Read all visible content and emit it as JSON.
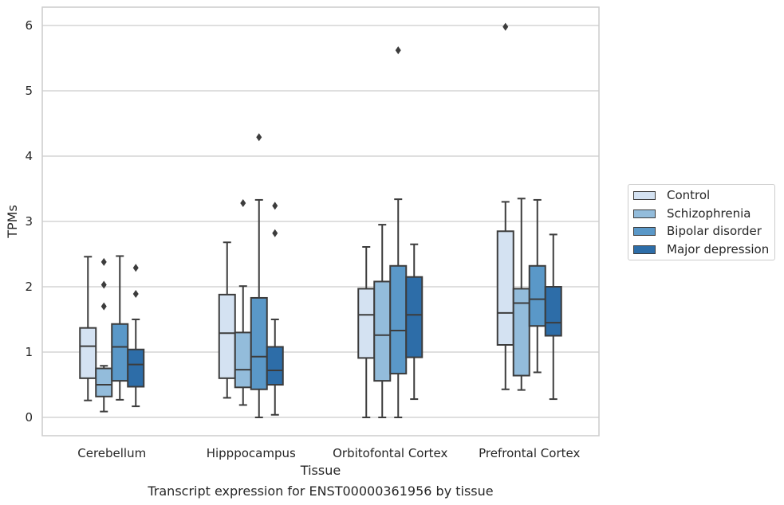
{
  "chart_data": {
    "type": "box",
    "title": "Transcript expression for ENST00000361956 by tissue",
    "xlabel": "Tissue",
    "ylabel": "TPMs",
    "ylim": [
      -0.28,
      6.28
    ],
    "yticks": [
      "0",
      "1",
      "2",
      "3",
      "4",
      "5",
      "6"
    ],
    "grid": "horizontal",
    "legend_position": "right",
    "categories": [
      "Cerebellum",
      "Hipppocampus",
      "Orbitofontal Cortex",
      "Prefrontal Cortex"
    ],
    "series": [
      {
        "name": "Control",
        "color": "#d4e2f2",
        "boxes": [
          {
            "whisker_low": 0.26,
            "q1": 0.6,
            "median": 1.09,
            "q3": 1.37,
            "whisker_high": 2.46,
            "outliers": []
          },
          {
            "whisker_low": 0.3,
            "q1": 0.6,
            "median": 1.29,
            "q3": 1.88,
            "whisker_high": 2.68,
            "outliers": []
          },
          {
            "whisker_low": 0.0,
            "q1": 0.91,
            "median": 1.57,
            "q3": 1.97,
            "whisker_high": 2.61,
            "outliers": []
          },
          {
            "whisker_low": 0.43,
            "q1": 1.11,
            "median": 1.6,
            "q3": 2.85,
            "whisker_high": 3.3,
            "outliers": [
              5.98
            ]
          }
        ]
      },
      {
        "name": "Schizophrenia",
        "color": "#93bcdb",
        "boxes": [
          {
            "whisker_low": 0.09,
            "q1": 0.32,
            "median": 0.5,
            "q3": 0.75,
            "whisker_high": 0.79,
            "outliers": [
              1.7,
              2.03,
              2.38
            ]
          },
          {
            "whisker_low": 0.19,
            "q1": 0.46,
            "median": 0.73,
            "q3": 1.3,
            "whisker_high": 2.01,
            "outliers": [
              3.28
            ]
          },
          {
            "whisker_low": 0.0,
            "q1": 0.56,
            "median": 1.26,
            "q3": 2.08,
            "whisker_high": 2.95,
            "outliers": []
          },
          {
            "whisker_low": 0.42,
            "q1": 0.64,
            "median": 1.75,
            "q3": 1.97,
            "whisker_high": 3.35,
            "outliers": []
          }
        ]
      },
      {
        "name": "Bipolar disorder",
        "color": "#5a98c8",
        "boxes": [
          {
            "whisker_low": 0.27,
            "q1": 0.56,
            "median": 1.08,
            "q3": 1.43,
            "whisker_high": 2.47,
            "outliers": []
          },
          {
            "whisker_low": 0.0,
            "q1": 0.43,
            "median": 0.93,
            "q3": 1.83,
            "whisker_high": 3.33,
            "outliers": [
              4.29
            ]
          },
          {
            "whisker_low": 0.0,
            "q1": 0.67,
            "median": 1.33,
            "q3": 2.32,
            "whisker_high": 3.34,
            "outliers": [
              5.62
            ]
          },
          {
            "whisker_low": 0.69,
            "q1": 1.4,
            "median": 1.81,
            "q3": 2.32,
            "whisker_high": 3.33,
            "outliers": []
          }
        ]
      },
      {
        "name": "Major depression",
        "color": "#2d6da8",
        "boxes": [
          {
            "whisker_low": 0.17,
            "q1": 0.47,
            "median": 0.81,
            "q3": 1.04,
            "whisker_high": 1.5,
            "outliers": [
              1.89,
              2.29
            ]
          },
          {
            "whisker_low": 0.04,
            "q1": 0.5,
            "median": 0.72,
            "q3": 1.08,
            "whisker_high": 1.5,
            "outliers": [
              2.82,
              3.24
            ]
          },
          {
            "whisker_low": 0.28,
            "q1": 0.92,
            "median": 1.57,
            "q3": 2.15,
            "whisker_high": 2.65,
            "outliers": []
          },
          {
            "whisker_low": 0.28,
            "q1": 1.25,
            "median": 1.45,
            "q3": 2.0,
            "whisker_high": 2.8,
            "outliers": []
          }
        ]
      }
    ]
  }
}
